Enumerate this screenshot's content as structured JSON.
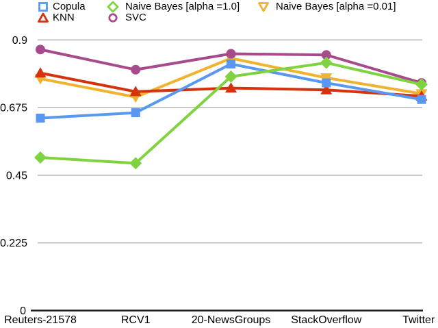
{
  "chart_data": {
    "type": "line",
    "title": "",
    "xlabel": "",
    "ylabel": "",
    "categories": [
      "Reuters-21578",
      "RCV1",
      "20-NewsGroups",
      "StackOverflow",
      "Twitter"
    ],
    "ylim": [
      0,
      0.9
    ],
    "y_ticks": [
      0,
      0.225,
      0.45,
      0.675,
      0.9
    ],
    "y_tick_labels": [
      "0",
      "0.225",
      "0.45",
      "0.675",
      "0.9"
    ],
    "grid": true,
    "legend_position": "top",
    "series": [
      {
        "name": "Copula",
        "marker": "square",
        "color": "#5898F0",
        "values": [
          0.64,
          0.658,
          0.82,
          0.757,
          0.702
        ]
      },
      {
        "name": "KNN",
        "marker": "triangle-up",
        "color": "#D5320E",
        "values": [
          0.79,
          0.728,
          0.74,
          0.734,
          0.713
        ]
      },
      {
        "name": "Naive Bayes [alpha =1.0]",
        "marker": "diamond",
        "color": "#7FD341",
        "values": [
          0.509,
          0.49,
          0.778,
          0.824,
          0.752
        ]
      },
      {
        "name": "SVC",
        "marker": "circle",
        "color": "#A74B8D",
        "values": [
          0.868,
          0.801,
          0.854,
          0.85,
          0.757
        ]
      },
      {
        "name": "Naive Bayes [alpha =0.01]",
        "marker": "triangle-down",
        "color": "#EFB32E",
        "values": [
          0.771,
          0.71,
          0.839,
          0.774,
          0.721
        ]
      }
    ],
    "draw_order": [
      4,
      1,
      0,
      3,
      2
    ],
    "colors": {
      "gridline": "#BBBBBB",
      "axis": "#1A1A1A",
      "text": "#000000",
      "background": "#FFFFFF"
    }
  }
}
